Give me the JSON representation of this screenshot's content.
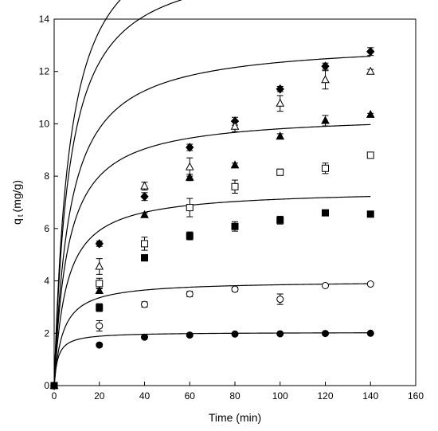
{
  "chart_data": {
    "type": "scatter",
    "xlabel": "Time (min)",
    "ylabel_main": "q",
    "ylabel_sub": "t",
    "ylabel_unit": "(mg/g)",
    "xlim": [
      0,
      160
    ],
    "ylim": [
      0,
      14
    ],
    "xticks": [
      0,
      20,
      40,
      60,
      80,
      100,
      120,
      140,
      160
    ],
    "yticks": [
      0,
      2,
      4,
      6,
      8,
      10,
      12,
      14
    ],
    "grid": false,
    "legend": "none",
    "x": [
      0,
      20,
      40,
      60,
      80,
      100,
      120,
      140
    ],
    "series": [
      {
        "marker": "diamond-filled",
        "values": [
          0,
          5.42,
          7.22,
          9.1,
          10.1,
          11.33,
          12.2,
          12.76
        ],
        "errors": [
          0,
          0.1,
          0.15,
          0.12,
          0.15,
          0.1,
          0.12,
          0.15
        ],
        "fit": {
          "qe": 18.2,
          "k": 0.008
        }
      },
      {
        "marker": "triangle-open",
        "values": [
          0,
          4.55,
          7.62,
          8.35,
          9.9,
          10.78,
          11.68,
          12.0
        ],
        "errors": [
          0,
          0.3,
          0.15,
          0.35,
          0.2,
          0.3,
          0.35,
          0.08
        ],
        "fit": {
          "qe": 16.5,
          "k": 0.009
        }
      },
      {
        "marker": "triangle-filled",
        "values": [
          0,
          3.62,
          6.52,
          7.95,
          8.42,
          9.52,
          10.12,
          10.35
        ],
        "errors": [
          0,
          0.1,
          0.08,
          0.12,
          0.08,
          0.1,
          0.2,
          0.05
        ],
        "fit": {
          "qe": 13.2,
          "k": 0.011
        }
      },
      {
        "marker": "square-open",
        "values": [
          0,
          3.9,
          5.42,
          6.8,
          7.6,
          8.15,
          8.3,
          8.8
        ],
        "errors": [
          0,
          0.2,
          0.25,
          0.35,
          0.25,
          0.12,
          0.2,
          0.1
        ],
        "fit": {
          "qe": 10.4,
          "k": 0.016
        }
      },
      {
        "marker": "square-filled",
        "values": [
          0,
          2.98,
          4.88,
          5.72,
          6.08,
          6.32,
          6.6,
          6.55
        ],
        "errors": [
          0,
          0.15,
          0.12,
          0.15,
          0.18,
          0.15,
          0.1,
          0.07
        ],
        "fit": {
          "qe": 7.5,
          "k": 0.025
        }
      },
      {
        "marker": "circle-open",
        "values": [
          0,
          2.28,
          3.1,
          3.5,
          3.68,
          3.3,
          3.82,
          3.88
        ],
        "errors": [
          0,
          0.2,
          0.1,
          0.1,
          0.08,
          0.2,
          0.05,
          0.05
        ],
        "fit": {
          "qe": 4.0,
          "k": 0.065
        }
      },
      {
        "marker": "circle-filled",
        "values": [
          0,
          1.55,
          1.85,
          1.93,
          1.97,
          1.98,
          1.99,
          2.0
        ],
        "errors": [
          0,
          0.05,
          0.04,
          0.04,
          0.03,
          0.03,
          0.03,
          0.03
        ],
        "fit": {
          "qe": 2.04,
          "k": 0.3
        }
      }
    ]
  }
}
